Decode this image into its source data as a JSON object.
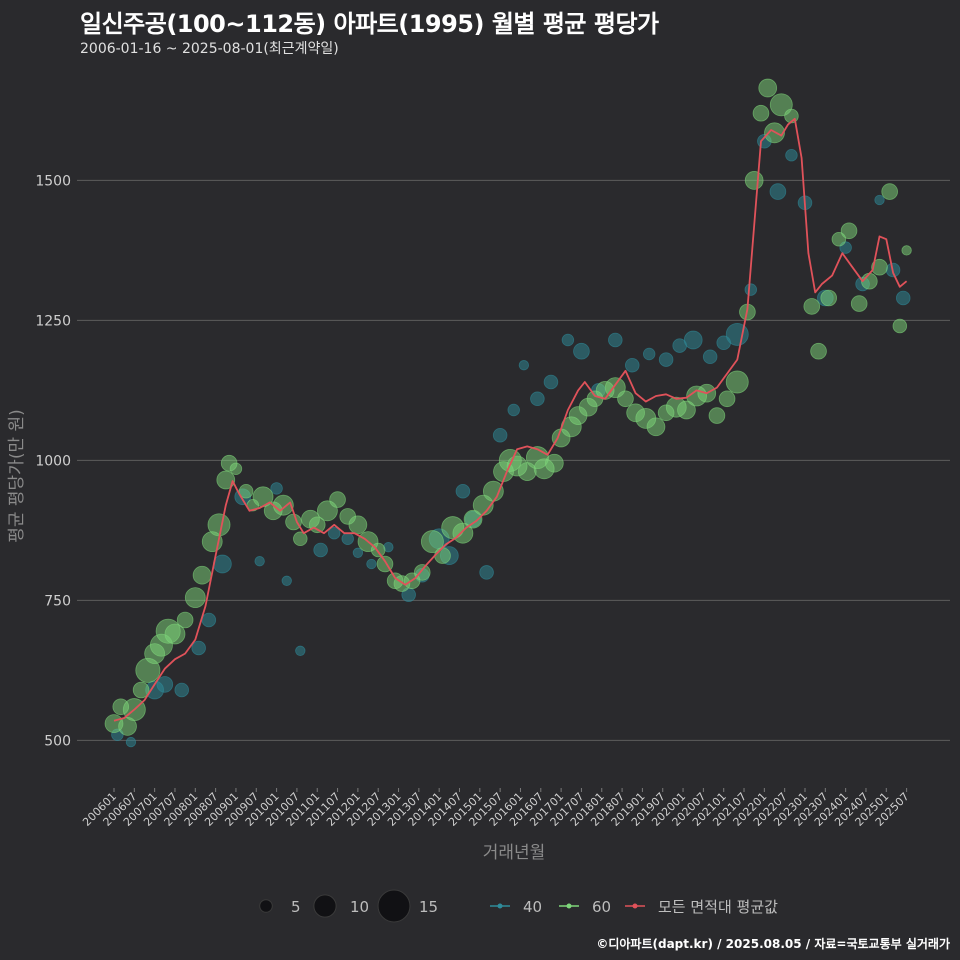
{
  "title": "일신주공(100~112동) 아파트(1995) 월별 평균 평당가",
  "subtitle": "2006-01-16 ~ 2025-08-01(최근계약일)",
  "caption": "©디아파트(dapt.kr) / 2025.08.05 / 자료=국토교통부 실거래가",
  "colors": {
    "background": "#2a2a2d",
    "grid": "#5c5c5c",
    "series_40": "#2e8b9a",
    "series_60": "#7ed67a",
    "avg_line": "#e0525a"
  },
  "chart_data": {
    "type": "line+scatter",
    "xlabel": "거래년월",
    "ylabel": "평균 평당가(만 원)",
    "ylim": [
      415,
      1715
    ],
    "yticks": [
      500,
      750,
      1000,
      1250,
      1500
    ],
    "x_range": [
      "2006-01",
      "2025-08"
    ],
    "xtick_labels": [
      "200601",
      "200607",
      "200701",
      "200707",
      "200801",
      "200807",
      "200901",
      "200907",
      "201001",
      "201007",
      "201101",
      "201107",
      "201201",
      "201207",
      "201301",
      "201307",
      "201401",
      "201407",
      "201501",
      "201507",
      "201601",
      "201607",
      "201701",
      "201707",
      "201801",
      "201807",
      "201901",
      "201907",
      "202001",
      "202007",
      "202101",
      "202107",
      "202201",
      "202207",
      "202301",
      "202307",
      "202401",
      "202407",
      "202501",
      "202507"
    ],
    "legend": {
      "size_title": "",
      "size_entries": [
        5,
        10,
        15
      ],
      "color_entries": [
        "40",
        "60",
        "모든 면적대 평균값"
      ]
    },
    "avg_line": {
      "name": "모든 면적대 평균값",
      "points": [
        [
          "2006-01",
          535
        ],
        [
          "2006-04",
          540
        ],
        [
          "2006-07",
          555
        ],
        [
          "2006-10",
          572
        ],
        [
          "2007-01",
          600
        ],
        [
          "2007-04",
          628
        ],
        [
          "2007-07",
          645
        ],
        [
          "2007-10",
          655
        ],
        [
          "2008-01",
          680
        ],
        [
          "2008-04",
          740
        ],
        [
          "2008-07",
          830
        ],
        [
          "2008-10",
          920
        ],
        [
          "2008-12",
          963
        ],
        [
          "2009-02",
          940
        ],
        [
          "2009-05",
          910
        ],
        [
          "2009-08",
          915
        ],
        [
          "2009-11",
          925
        ],
        [
          "2010-02",
          910
        ],
        [
          "2010-05",
          925
        ],
        [
          "2010-07",
          890
        ],
        [
          "2010-09",
          870
        ],
        [
          "2010-12",
          880
        ],
        [
          "2011-03",
          870
        ],
        [
          "2011-06",
          885
        ],
        [
          "2011-09",
          870
        ],
        [
          "2011-12",
          870
        ],
        [
          "2012-03",
          860
        ],
        [
          "2012-06",
          845
        ],
        [
          "2012-09",
          820
        ],
        [
          "2012-12",
          790
        ],
        [
          "2013-03",
          778
        ],
        [
          "2013-06",
          790
        ],
        [
          "2013-09",
          812
        ],
        [
          "2013-12",
          832
        ],
        [
          "2014-03",
          850
        ],
        [
          "2014-06",
          862
        ],
        [
          "2014-09",
          880
        ],
        [
          "2014-12",
          892
        ],
        [
          "2015-03",
          910
        ],
        [
          "2015-06",
          935
        ],
        [
          "2015-09",
          980
        ],
        [
          "2015-12",
          1020
        ],
        [
          "2016-03",
          1025
        ],
        [
          "2016-06",
          1020
        ],
        [
          "2016-09",
          1010
        ],
        [
          "2016-12",
          1040
        ],
        [
          "2017-03",
          1090
        ],
        [
          "2017-06",
          1125
        ],
        [
          "2017-08",
          1140
        ],
        [
          "2017-11",
          1115
        ],
        [
          "2018-02",
          1110
        ],
        [
          "2018-05",
          1135
        ],
        [
          "2018-08",
          1160
        ],
        [
          "2018-11",
          1120
        ],
        [
          "2019-02",
          1105
        ],
        [
          "2019-05",
          1115
        ],
        [
          "2019-08",
          1118
        ],
        [
          "2019-11",
          1110
        ],
        [
          "2020-02",
          1112
        ],
        [
          "2020-05",
          1125
        ],
        [
          "2020-08",
          1120
        ],
        [
          "2020-11",
          1130
        ],
        [
          "2021-02",
          1155
        ],
        [
          "2021-05",
          1180
        ],
        [
          "2021-08",
          1270
        ],
        [
          "2021-10",
          1420
        ],
        [
          "2021-12",
          1570
        ],
        [
          "2022-03",
          1590
        ],
        [
          "2022-06",
          1580
        ],
        [
          "2022-08",
          1600
        ],
        [
          "2022-10",
          1610
        ],
        [
          "2022-12",
          1540
        ],
        [
          "2023-02",
          1370
        ],
        [
          "2023-04",
          1300
        ],
        [
          "2023-06",
          1315
        ],
        [
          "2023-09",
          1330
        ],
        [
          "2023-12",
          1370
        ],
        [
          "2024-03",
          1345
        ],
        [
          "2024-06",
          1320
        ],
        [
          "2024-09",
          1340
        ],
        [
          "2024-11",
          1400
        ],
        [
          "2025-01",
          1395
        ],
        [
          "2025-03",
          1335
        ],
        [
          "2025-05",
          1310
        ],
        [
          "2025-07",
          1320
        ]
      ]
    },
    "series": [
      {
        "name": "40",
        "points": [
          [
            "2006-02",
            510,
            4
          ],
          [
            "2006-06",
            497,
            3
          ],
          [
            "2007-01",
            590,
            7
          ],
          [
            "2007-04",
            600,
            6
          ],
          [
            "2007-09",
            590,
            5
          ],
          [
            "2008-02",
            665,
            5
          ],
          [
            "2008-05",
            715,
            5
          ],
          [
            "2008-09",
            815,
            7
          ],
          [
            "2009-03",
            935,
            6
          ],
          [
            "2009-08",
            820,
            3
          ],
          [
            "2010-01",
            950,
            4
          ],
          [
            "2010-04",
            785,
            3
          ],
          [
            "2010-08",
            660,
            3
          ],
          [
            "2011-02",
            840,
            5
          ],
          [
            "2011-06",
            870,
            4
          ],
          [
            "2011-10",
            860,
            4
          ],
          [
            "2012-01",
            835,
            3
          ],
          [
            "2012-05",
            815,
            3
          ],
          [
            "2012-10",
            845,
            3
          ],
          [
            "2013-04",
            760,
            5
          ],
          [
            "2013-08",
            795,
            5
          ],
          [
            "2014-01",
            860,
            8
          ],
          [
            "2014-04",
            830,
            7
          ],
          [
            "2014-08",
            945,
            5
          ],
          [
            "2014-11",
            895,
            6
          ],
          [
            "2015-03",
            800,
            5
          ],
          [
            "2015-07",
            1045,
            5
          ],
          [
            "2015-11",
            1090,
            4
          ],
          [
            "2016-02",
            1170,
            3
          ],
          [
            "2016-06",
            1110,
            5
          ],
          [
            "2016-10",
            1140,
            5
          ],
          [
            "2017-03",
            1215,
            4
          ],
          [
            "2017-07",
            1195,
            6
          ],
          [
            "2017-12",
            1125,
            5
          ],
          [
            "2018-05",
            1215,
            5
          ],
          [
            "2018-10",
            1170,
            5
          ],
          [
            "2019-03",
            1190,
            4
          ],
          [
            "2019-08",
            1180,
            5
          ],
          [
            "2019-12",
            1205,
            5
          ],
          [
            "2020-04",
            1215,
            7
          ],
          [
            "2020-09",
            1185,
            5
          ],
          [
            "2021-01",
            1210,
            5
          ],
          [
            "2021-05",
            1225,
            9
          ],
          [
            "2021-09",
            1305,
            4
          ],
          [
            "2022-01",
            1570,
            5
          ],
          [
            "2022-05",
            1480,
            6
          ],
          [
            "2022-09",
            1545,
            4
          ],
          [
            "2023-01",
            1460,
            5
          ],
          [
            "2023-07",
            1290,
            6
          ],
          [
            "2024-01",
            1380,
            4
          ],
          [
            "2024-06",
            1315,
            5
          ],
          [
            "2024-11",
            1465,
            3
          ],
          [
            "2025-03",
            1340,
            5
          ],
          [
            "2025-06",
            1290,
            5
          ]
        ]
      },
      {
        "name": "60",
        "points": [
          [
            "2006-01",
            530,
            7
          ],
          [
            "2006-03",
            560,
            6
          ],
          [
            "2006-05",
            525,
            7
          ],
          [
            "2006-07",
            555,
            9
          ],
          [
            "2006-09",
            590,
            6
          ],
          [
            "2006-11",
            625,
            10
          ],
          [
            "2007-01",
            655,
            8
          ],
          [
            "2007-03",
            670,
            9
          ],
          [
            "2007-05",
            695,
            10
          ],
          [
            "2007-07",
            690,
            8
          ],
          [
            "2007-10",
            715,
            6
          ],
          [
            "2008-01",
            755,
            8
          ],
          [
            "2008-03",
            795,
            7
          ],
          [
            "2008-06",
            855,
            8
          ],
          [
            "2008-08",
            885,
            9
          ],
          [
            "2008-10",
            965,
            7
          ],
          [
            "2008-11",
            995,
            6
          ],
          [
            "2009-01",
            985,
            4
          ],
          [
            "2009-04",
            945,
            5
          ],
          [
            "2009-06",
            920,
            4
          ],
          [
            "2009-09",
            935,
            8
          ],
          [
            "2009-12",
            910,
            7
          ],
          [
            "2010-03",
            920,
            8
          ],
          [
            "2010-06",
            890,
            6
          ],
          [
            "2010-08",
            860,
            5
          ],
          [
            "2010-11",
            895,
            7
          ],
          [
            "2011-01",
            885,
            6
          ],
          [
            "2011-04",
            910,
            8
          ],
          [
            "2011-07",
            930,
            6
          ],
          [
            "2011-10",
            900,
            6
          ],
          [
            "2012-01",
            885,
            7
          ],
          [
            "2012-04",
            855,
            8
          ],
          [
            "2012-07",
            840,
            5
          ],
          [
            "2012-09",
            815,
            6
          ],
          [
            "2012-12",
            785,
            6
          ],
          [
            "2013-02",
            780,
            6
          ],
          [
            "2013-05",
            785,
            6
          ],
          [
            "2013-08",
            800,
            6
          ],
          [
            "2013-11",
            855,
            9
          ],
          [
            "2014-02",
            830,
            6
          ],
          [
            "2014-05",
            880,
            9
          ],
          [
            "2014-08",
            870,
            8
          ],
          [
            "2014-11",
            895,
            7
          ],
          [
            "2015-02",
            920,
            8
          ],
          [
            "2015-05",
            945,
            8
          ],
          [
            "2015-08",
            980,
            8
          ],
          [
            "2015-10",
            1000,
            9
          ],
          [
            "2015-12",
            990,
            8
          ],
          [
            "2016-03",
            980,
            7
          ],
          [
            "2016-06",
            1005,
            9
          ],
          [
            "2016-08",
            985,
            8
          ],
          [
            "2016-11",
            995,
            7
          ],
          [
            "2017-01",
            1040,
            7
          ],
          [
            "2017-04",
            1060,
            8
          ],
          [
            "2017-06",
            1080,
            7
          ],
          [
            "2017-09",
            1095,
            7
          ],
          [
            "2017-11",
            1110,
            6
          ],
          [
            "2018-02",
            1125,
            7
          ],
          [
            "2018-05",
            1130,
            8
          ],
          [
            "2018-08",
            1110,
            6
          ],
          [
            "2018-11",
            1085,
            7
          ],
          [
            "2019-02",
            1075,
            8
          ],
          [
            "2019-05",
            1060,
            7
          ],
          [
            "2019-08",
            1085,
            6
          ],
          [
            "2019-11",
            1095,
            8
          ],
          [
            "2020-02",
            1090,
            7
          ],
          [
            "2020-05",
            1115,
            8
          ],
          [
            "2020-08",
            1120,
            7
          ],
          [
            "2020-11",
            1080,
            6
          ],
          [
            "2021-02",
            1110,
            6
          ],
          [
            "2021-05",
            1140,
            9
          ],
          [
            "2021-08",
            1265,
            6
          ],
          [
            "2021-10",
            1500,
            7
          ],
          [
            "2021-12",
            1620,
            6
          ],
          [
            "2022-02",
            1665,
            7
          ],
          [
            "2022-04",
            1585,
            8
          ],
          [
            "2022-06",
            1635,
            9
          ],
          [
            "2022-09",
            1615,
            5
          ],
          [
            "2023-03",
            1275,
            6
          ],
          [
            "2023-05",
            1195,
            6
          ],
          [
            "2023-08",
            1290,
            6
          ],
          [
            "2023-11",
            1395,
            5
          ],
          [
            "2024-02",
            1410,
            6
          ],
          [
            "2024-05",
            1280,
            6
          ],
          [
            "2024-08",
            1320,
            6
          ],
          [
            "2024-11",
            1345,
            6
          ],
          [
            "2025-02",
            1480,
            6
          ],
          [
            "2025-05",
            1240,
            5
          ],
          [
            "2025-07",
            1375,
            3
          ]
        ]
      }
    ]
  }
}
